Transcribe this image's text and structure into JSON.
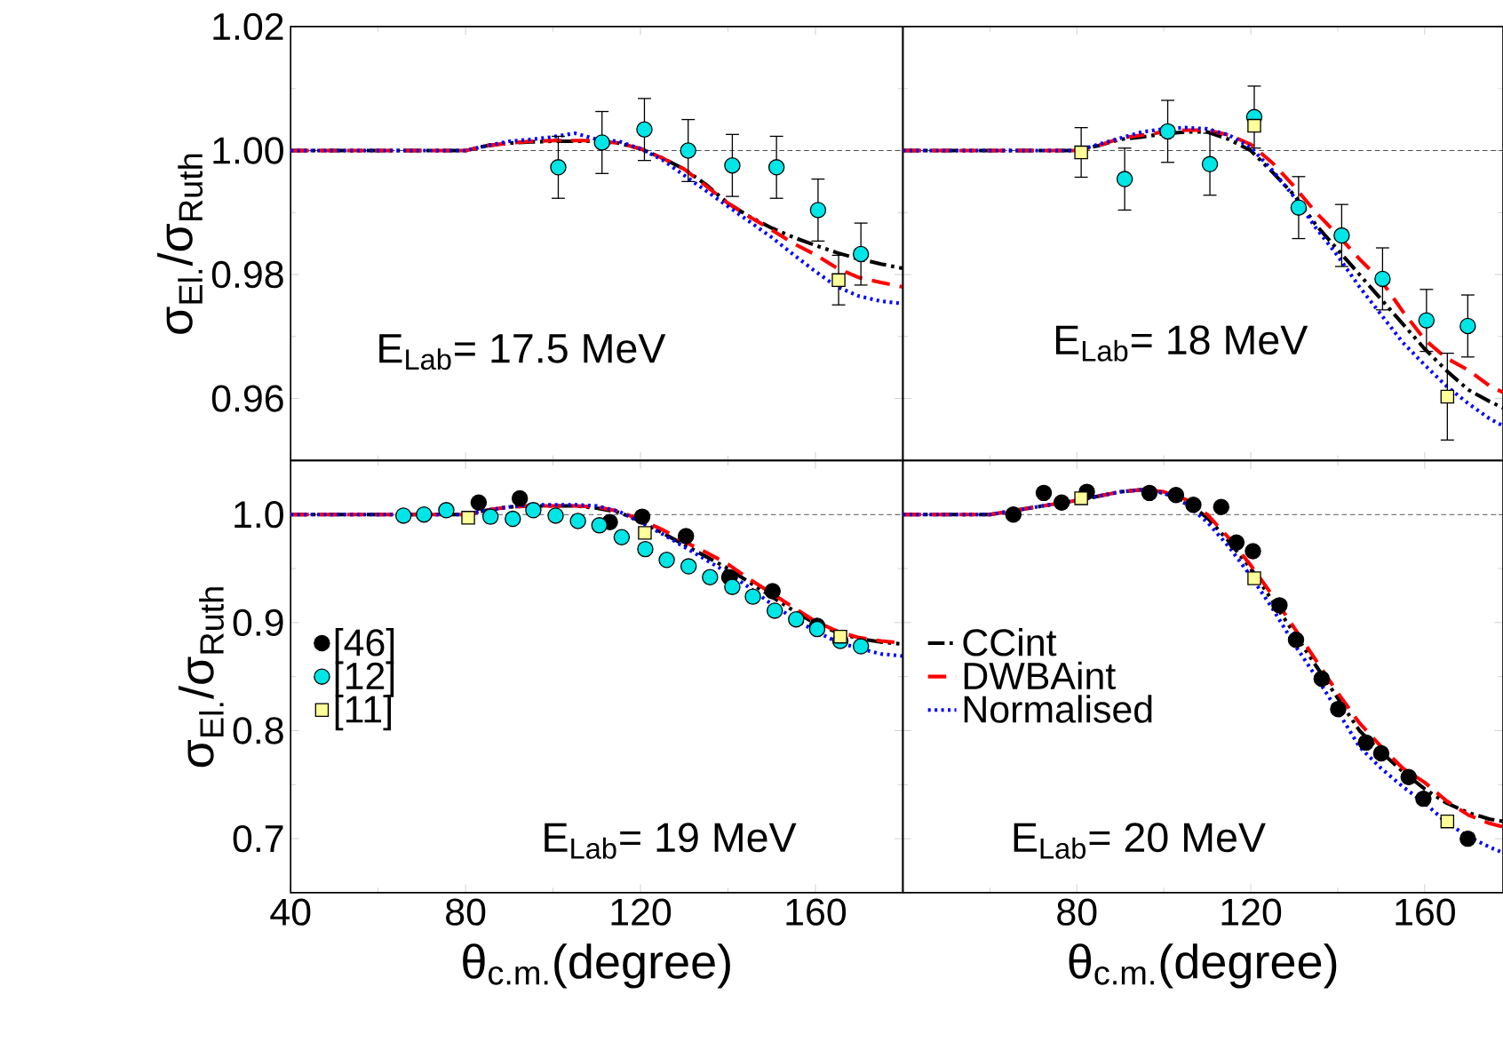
{
  "chart_data": [
    {
      "type": "line",
      "ylabel": "σ$_{El.}$/σ$_{Ruth}$",
      "annotations": [
        "E$_{Lab}$= 17.5 MeV"
      ],
      "tick_labels": "y",
      "xlim": [
        40,
        180
      ],
      "ylim": [
        0.95,
        1.02
      ],
      "xticks": [
        40,
        80,
        120,
        160
      ],
      "yticks": [
        0.96,
        0.98,
        {
          "value": 1.0,
          "label": "1.00"
        },
        1.02
      ],
      "ref_lines": [
        {
          "axis": "y",
          "value": 1.0,
          "line_style": "dashed"
        }
      ],
      "x": [
        40,
        60,
        80,
        85,
        90,
        95,
        100,
        105,
        110,
        115,
        120,
        125,
        130,
        135,
        140,
        145,
        150,
        155,
        160,
        165,
        170,
        175,
        180
      ],
      "series": [
        {
          "color": "#000000",
          "line_style": "dashdot",
          "values": [
            1.0,
            1.0,
            1.0,
            1.0008,
            1.0012,
            1.0014,
            1.0015,
            1.0015,
            1.0015,
            1.0012,
            1.0003,
            0.9988,
            0.997,
            0.9945,
            0.9915,
            0.9893,
            0.9875,
            0.986,
            0.9847,
            0.9835,
            0.9825,
            0.9817,
            0.981
          ]
        },
        {
          "color": "#ff0000",
          "line_style": "dashed",
          "values": [
            1.0,
            1.0,
            1.0,
            1.0008,
            1.0012,
            1.0015,
            1.0016,
            1.0016,
            1.0016,
            1.0012,
            1.0003,
            0.9988,
            0.997,
            0.9943,
            0.9915,
            0.9893,
            0.9872,
            0.985,
            0.9832,
            0.981,
            0.9795,
            0.9787,
            0.978
          ]
        },
        {
          "color": "#0000ff",
          "line_style": "dotted",
          "values": [
            1.0,
            1.0,
            1.0,
            1.0008,
            1.0015,
            1.0018,
            1.0022,
            1.0028,
            1.0018,
            1.0015,
            1.0003,
            0.9985,
            0.996,
            0.9935,
            0.991,
            0.9885,
            0.986,
            0.9832,
            0.9805,
            0.978,
            0.9765,
            0.9757,
            0.9753
          ]
        },
        {
          "type": "scatter",
          "marker": "circle",
          "color": "#00e5e5",
          "x": [
            101.2,
            111.2,
            120.9,
            130.9,
            141,
            151.1,
            160.6,
            170.4
          ],
          "values": [
            0.9973,
            1.0013,
            1.0034,
            1.0,
            0.9976,
            0.9973,
            0.9904,
            0.9833
          ],
          "errors": [
            0.005,
            0.005,
            0.005,
            0.005,
            0.005,
            0.005,
            0.005,
            0.005
          ]
        },
        {
          "type": "scatter",
          "marker": "square",
          "color": "#ffff99",
          "x": [
            165.3
          ],
          "values": [
            0.9791
          ],
          "errors": [
            0.004
          ]
        }
      ]
    },
    {
      "type": "line",
      "annotations": [
        "E$_{Lab}$= 18 MeV"
      ],
      "tick_labels": false,
      "xlim": [
        40,
        178
      ],
      "ylim": [
        0.95,
        1.02
      ],
      "xticks": [
        40,
        80,
        120,
        160
      ],
      "yticks": [
        0.96,
        0.98,
        1.0,
        1.02
      ],
      "ref_lines": [
        {
          "axis": "y",
          "value": 1.0,
          "line_style": "dashed"
        }
      ],
      "x": [
        40,
        60,
        80,
        85,
        90,
        95,
        100,
        105,
        110,
        115,
        120,
        125,
        130,
        135,
        140,
        145,
        150,
        155,
        160,
        165,
        170,
        175,
        178
      ],
      "series": [
        {
          "color": "#000000",
          "line_style": "dashdot",
          "values": [
            1.0,
            1.0,
            1.0,
            1.0008,
            1.0018,
            1.0022,
            1.0027,
            1.003,
            1.003,
            1.0018,
            1.0,
            0.9965,
            0.9928,
            0.988,
            0.984,
            0.98,
            0.976,
            0.972,
            0.968,
            0.9645,
            0.9614,
            0.9595,
            0.9585
          ]
        },
        {
          "color": "#ff0000",
          "line_style": "dashed",
          "values": [
            1.0,
            1.0,
            1.0,
            1.0008,
            1.002,
            1.0025,
            1.003,
            1.0033,
            1.0033,
            1.0025,
            1.001,
            0.998,
            0.9942,
            0.99,
            0.9864,
            0.9825,
            0.979,
            0.974,
            0.9695,
            0.9665,
            0.9646,
            0.962,
            0.961
          ]
        },
        {
          "color": "#0000ff",
          "line_style": "dotted",
          "values": [
            1.0,
            1.0,
            1.0,
            1.001,
            1.002,
            1.003,
            1.0035,
            1.0037,
            1.0035,
            1.0025,
            1.0005,
            0.9968,
            0.9925,
            0.9875,
            0.983,
            0.978,
            0.9735,
            0.969,
            0.9654,
            0.962,
            0.9592,
            0.9567,
            0.9556
          ]
        },
        {
          "type": "scatter",
          "marker": "circle",
          "color": "#00e5e5",
          "x": [
            91,
            100.9,
            110.6,
            120.8,
            131,
            140.9,
            150.3,
            160.4,
            169.9
          ],
          "values": [
            0.9954,
            1.0031,
            0.9978,
            1.0054,
            0.9908,
            0.9863,
            0.9793,
            0.9726,
            0.9717
          ],
          "errors": [
            0.005,
            0.005,
            0.005,
            0.005,
            0.005,
            0.005,
            0.005,
            0.005,
            0.005
          ]
        },
        {
          "type": "scatter",
          "marker": "square",
          "color": "#ffff99",
          "x": [
            81,
            120.8,
            165.2
          ],
          "values": [
            0.9997,
            1.004,
            0.9603
          ],
          "errors": [
            0.004,
            null,
            0.007
          ]
        }
      ]
    },
    {
      "type": "line",
      "xlabel": "θ$_{c.m.}$(degree)",
      "ylabel": "σ$_{El.}$/σ$_{Ruth}$",
      "annotations": [
        "E$_{Lab}$= 19 MeV"
      ],
      "legend": "left",
      "xlim": [
        40,
        180
      ],
      "ylim": [
        0.65,
        1.05
      ],
      "xticks": [
        40,
        80,
        120,
        160
      ],
      "yticks": [
        0.7,
        0.8,
        0.9,
        {
          "value": 1.0,
          "label": "1.0"
        }
      ],
      "ref_lines": [
        {
          "axis": "y",
          "value": 1.0,
          "line_style": "dashed"
        }
      ],
      "x": [
        40,
        60,
        80,
        85,
        90,
        95,
        100,
        105,
        110,
        115,
        120,
        125,
        130,
        135,
        140,
        145,
        150,
        155,
        160,
        165,
        170,
        175,
        180
      ],
      "series": [
        {
          "color": "#000000",
          "line_style": "dashdot",
          "values": [
            1.0,
            1.0,
            1.0,
            1.004,
            1.007,
            1.008,
            1.008,
            1.008,
            1.006,
            1.002,
            0.994,
            0.983,
            0.972,
            0.961,
            0.95,
            0.937,
            0.924,
            0.911,
            0.899,
            0.891,
            0.885,
            0.882,
            0.88
          ]
        },
        {
          "color": "#ff0000",
          "line_style": "dashed",
          "values": [
            1.0,
            1.0,
            1.0,
            1.004,
            1.007,
            1.008,
            1.008,
            1.008,
            1.007,
            1.003,
            0.995,
            0.986,
            0.975,
            0.965,
            0.954,
            0.94,
            0.927,
            0.914,
            0.901,
            0.892,
            0.886,
            0.883,
            0.881
          ]
        },
        {
          "color": "#0000ff",
          "line_style": "dotted",
          "values": [
            1.0,
            1.0,
            1.0,
            1.004,
            1.007,
            1.009,
            1.009,
            1.009,
            1.008,
            1.003,
            0.993,
            0.982,
            0.97,
            0.958,
            0.946,
            0.932,
            0.917,
            0.904,
            0.892,
            0.882,
            0.876,
            0.871,
            0.869
          ]
        },
        {
          "type": "scatter",
          "marker": "circle",
          "name": "[46]",
          "color": "#000000",
          "x": [
            83,
            92.4,
            113,
            120.4,
            130.4,
            140.3,
            150.2,
            160.4
          ],
          "values": [
            1.011,
            1.015,
            0.993,
            0.998,
            0.98,
            0.942,
            0.929,
            0.897
          ]
        },
        {
          "type": "scatter",
          "marker": "circle",
          "name": "[12]",
          "color": "#00e5e5",
          "x": [
            65.8,
            70.5,
            75.6,
            85.7,
            90.8,
            95.5,
            100.6,
            105.7,
            110.6,
            115.7,
            121.1,
            126,
            131,
            135.9,
            141,
            145.7,
            150.7,
            155.6,
            160.4,
            165.7,
            170.4
          ],
          "values": [
            0.999,
            1.0,
            1.004,
            0.998,
            0.996,
            1.004,
            0.999,
            0.994,
            0.99,
            0.979,
            0.968,
            0.958,
            0.952,
            0.942,
            0.933,
            0.924,
            0.911,
            0.903,
            0.894,
            0.883,
            0.878
          ]
        },
        {
          "type": "scatter",
          "marker": "square",
          "name": "[11]",
          "color": "#ffff99",
          "x": [
            80.6,
            121,
            165.7
          ],
          "values": [
            0.997,
            0.983,
            0.887
          ]
        }
      ]
    },
    {
      "type": "line",
      "xlabel": "θ$_{c.m.}$(degree)",
      "annotations": [
        "E$_{Lab}$= 20 MeV"
      ],
      "legend": "left",
      "tick_labels": "x",
      "xlim": [
        40,
        178
      ],
      "ylim": [
        0.65,
        1.05
      ],
      "xticks": [
        {
          "value": 40,
          "label": null
        },
        80,
        120,
        160
      ],
      "yticks": [
        0.7,
        0.8,
        0.9,
        1.0
      ],
      "ref_lines": [
        {
          "axis": "y",
          "value": 1.0,
          "line_style": "dashed"
        }
      ],
      "x": [
        40,
        60,
        80,
        85,
        90,
        95,
        100,
        105,
        110,
        115,
        120,
        125,
        130,
        135,
        140,
        145,
        150,
        155,
        160,
        165,
        170,
        175,
        178
      ],
      "series": [
        {
          "name": "CCint",
          "color": "#000000",
          "line_style": "dashdot",
          "values": [
            1.0,
            1.0,
            1.013,
            1.017,
            1.021,
            1.023,
            1.02,
            1.012,
            0.997,
            0.975,
            0.95,
            0.92,
            0.89,
            0.86,
            0.83,
            0.8,
            0.78,
            0.762,
            0.746,
            0.733,
            0.724,
            0.718,
            0.716
          ]
        },
        {
          "name": "DWBAint",
          "color": "#ff0000",
          "line_style": "dashed",
          "values": [
            1.0,
            1.0,
            1.013,
            1.017,
            1.021,
            1.023,
            1.021,
            1.014,
            1.0,
            0.978,
            0.953,
            0.925,
            0.895,
            0.865,
            0.835,
            0.807,
            0.785,
            0.765,
            0.752,
            0.735,
            0.722,
            0.714,
            0.711
          ]
        },
        {
          "name": "Normalised",
          "color": "#0000ff",
          "line_style": "dotted",
          "values": [
            1.0,
            1.0,
            1.013,
            1.017,
            1.021,
            1.023,
            1.02,
            1.01,
            0.993,
            0.97,
            0.943,
            0.913,
            0.88,
            0.85,
            0.818,
            0.785,
            0.765,
            0.748,
            0.733,
            0.715,
            0.702,
            0.692,
            0.687
          ]
        },
        {
          "type": "scatter",
          "marker": "circle",
          "color": "#000000",
          "x": [
            65.4,
            72.4,
            76.5,
            82.3,
            96.7,
            102.8,
            106.8,
            113.2,
            116.7,
            120.5,
            126.6,
            130.4,
            136.3,
            140.1,
            146.5,
            150,
            156.3,
            159.7,
            169.9
          ],
          "values": [
            1.0,
            1.02,
            1.011,
            1.021,
            1.02,
            1.018,
            1.009,
            1.007,
            0.974,
            0.966,
            0.916,
            0.884,
            0.848,
            0.82,
            0.789,
            0.779,
            0.757,
            0.737,
            0.7
          ]
        },
        {
          "type": "scatter",
          "marker": "square",
          "color": "#ffff99",
          "x": [
            81,
            120.8,
            165.2
          ],
          "values": [
            1.015,
            0.941,
            0.716
          ]
        }
      ]
    }
  ]
}
